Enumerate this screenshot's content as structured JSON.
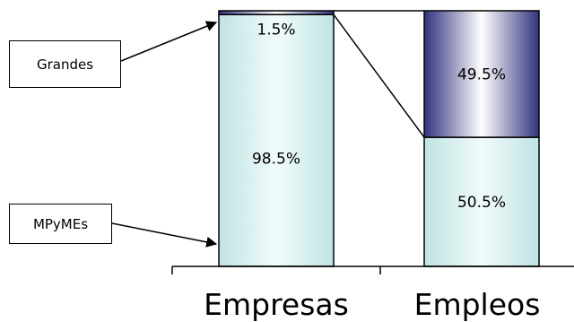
{
  "chart_data": {
    "type": "bar",
    "stacked": true,
    "normalized": true,
    "categories": [
      "Empresas",
      "Empleos"
    ],
    "series": [
      {
        "name": "MPyMEs",
        "values": [
          98.5,
          50.5
        ],
        "labels": [
          "98.5%",
          "50.5%"
        ],
        "color": "#dff5f5"
      },
      {
        "name": "Grandes",
        "values": [
          1.5,
          49.5
        ],
        "labels": [
          "1.5%",
          "49.5%"
        ],
        "color": "#3a3a8c"
      }
    ],
    "ylim": [
      0,
      100
    ],
    "grid": false,
    "connector_lines": true
  },
  "callouts": {
    "grandes": "Grandes",
    "mpymes": "MPyMEs"
  }
}
